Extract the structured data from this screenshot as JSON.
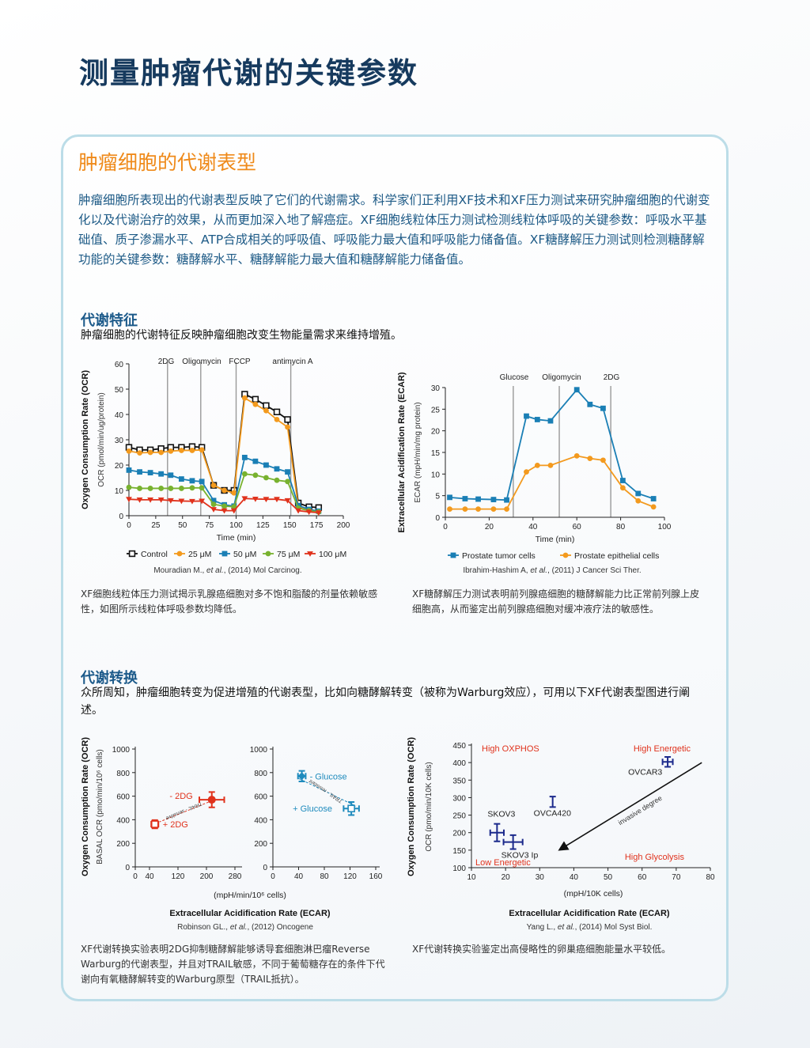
{
  "page": {
    "title": "测量肿瘤代谢的关键参数",
    "section_title": "肿瘤细胞的代谢表型",
    "intro": "肿瘤细胞所表现出的代谢表型反映了它们的代谢需求。科学家们正利用XF技术和XF压力测试来研究肿瘤细胞的代谢变化以及代谢治疗的效果，从而更加深入地了解癌症。XF细胞线粒体压力测试检测线粒体呼吸的关键参数：呼吸水平基础值、质子渗漏水平、ATP合成相关的呼吸值、呼吸能力最大值和呼吸能力储备值。XF糖酵解压力测试则检测糖酵解功能的关键参数：糖酵解水平、糖酵解能力最大值和糖酵解能力储备值。",
    "sub1_title": "代谢特征",
    "sub1_text": "肿瘤细胞的代谢特征反映肿瘤细胞改变生物能量需求来维持增殖。",
    "caption1": "XF细胞线粒体压力测试揭示乳腺癌细胞对多不饱和脂酸的剂量依赖敏感性，如图所示线粒体呼吸参数均降低。",
    "caption2": "XF糖酵解压力测试表明前列腺癌细胞的糖酵解能力比正常前列腺上皮细胞高，从而鉴定出前列腺癌细胞对缓冲液疗法的敏感性。",
    "sub2_title": "代谢转换",
    "sub2_text": "众所周知，肿瘤细胞转变为促进增殖的代谢表型，比如向糖酵解转变（被称为Warburg效应），可用以下XF代谢表型图进行阐述。",
    "caption3": "XF代谢转换实验表明2DG抑制糖酵解能够诱导套细胞淋巴瘤Reverse Warburg的代谢表型，并且对TRAIL敏感，不同于葡萄糖存在的条件下代谢向有氧糖酵解转变的Warburg原型（TRAIL抵抗）。",
    "caption4": "XF代谢转换实验鉴定出高侵略性的卵巢癌细胞能量水平较低。"
  },
  "colors": {
    "title": "#163a5e",
    "orange": "#ef8a1a",
    "panel_border": "#bcdde8",
    "control": "#111111",
    "c25": "#f39a1e",
    "c50": "#1a7fb5",
    "c75": "#78b22f",
    "c100": "#e0321c",
    "ovarian": "#1c2a8c",
    "red_label": "#e0321c",
    "teal": "#1f8bbd"
  },
  "chart_data": [
    {
      "type": "line",
      "ylabel": "Oxygen Consumption Rate (OCR)",
      "ylabel2": "OCR (pmol/min/ug/protein)",
      "xlabel": "Time (min)",
      "xlim": [
        0,
        200
      ],
      "ylim": [
        0,
        60
      ],
      "xticks": [
        0,
        25,
        50,
        75,
        100,
        125,
        150,
        175,
        200
      ],
      "yticks": [
        0,
        10,
        20,
        30,
        40,
        50,
        60
      ],
      "injections": [
        {
          "label": "2DG",
          "x": 36
        },
        {
          "label": "Oligomycin",
          "x": 67
        },
        {
          "label": "FCCP",
          "x": 100
        },
        {
          "label": "antimycin A",
          "x": 151
        }
      ],
      "x": [
        0,
        10,
        20,
        30,
        39,
        49,
        59,
        68,
        79,
        89,
        98,
        108,
        118,
        128,
        138,
        148,
        158,
        168,
        177
      ],
      "series": [
        {
          "name": "Control",
          "marker": "square-open",
          "color": "#111111",
          "values": [
            27,
            26,
            26,
            26.5,
            27,
            27,
            27.3,
            27,
            12,
            10,
            10,
            48,
            46,
            43.5,
            41,
            38,
            5,
            3.5,
            3.2
          ]
        },
        {
          "name": "25 μM",
          "marker": "circle",
          "color": "#f39a1e",
          "values": [
            25.5,
            24.8,
            25,
            25,
            25.5,
            25.8,
            25.8,
            26,
            12,
            10,
            9,
            46.5,
            44,
            41.5,
            38,
            35,
            3.5,
            2,
            1.5
          ]
        },
        {
          "name": "50 μM",
          "marker": "square",
          "color": "#1a7fb5",
          "values": [
            18,
            17.3,
            17,
            16.5,
            16,
            14.5,
            13.8,
            13.5,
            6,
            4.3,
            3.8,
            23,
            21.5,
            20,
            18.5,
            17.3,
            4,
            2.5,
            1.8
          ]
        },
        {
          "name": "75 μM",
          "marker": "circle",
          "color": "#78b22f",
          "values": [
            11.2,
            10.8,
            10.8,
            10.8,
            10.8,
            10.8,
            11,
            11,
            4.5,
            3.8,
            3.5,
            16.5,
            16,
            15,
            14,
            13.5,
            3,
            2,
            1.5
          ]
        },
        {
          "name": "100 μM",
          "marker": "triangle-down",
          "color": "#e0321c",
          "values": [
            6.5,
            6.3,
            6.3,
            6.3,
            6,
            5.8,
            5.7,
            5.8,
            2.5,
            2,
            2,
            6.8,
            6.6,
            6.5,
            6.5,
            6,
            2,
            1.5,
            1.2
          ]
        }
      ],
      "legend": "bottom",
      "citation": {
        "pre": "Mouradian M., ",
        "em": "et al.",
        "post": ", (2014) Mol Carcinog."
      }
    },
    {
      "type": "line",
      "ylabel": "Extracellular Acidification Rate (ECAR)",
      "ylabel2": "ECAR (mpH/min/mg protein)",
      "xlabel": "Time (min)",
      "xlim": [
        0,
        100
      ],
      "ylim": [
        0,
        30
      ],
      "xticks": [
        0,
        20,
        40,
        60,
        80,
        100
      ],
      "yticks": [
        0,
        5,
        10,
        15,
        20,
        25,
        30
      ],
      "injections": [
        {
          "label": "Glucose",
          "x": 31
        },
        {
          "label": "Oligomycin",
          "x": 52
        },
        {
          "label": "2DG",
          "x": 75.5
        }
      ],
      "x": [
        2,
        9,
        15,
        22,
        28,
        37,
        42,
        48,
        60,
        66,
        72,
        81,
        88,
        95
      ],
      "series": [
        {
          "name": "Prostate tumor cells",
          "marker": "square",
          "color": "#1a7fb5",
          "values": [
            4.6,
            4.3,
            4.2,
            4.1,
            4.0,
            23.4,
            22.6,
            22.3,
            29.5,
            26.1,
            25.2,
            8.5,
            5.5,
            4.3
          ]
        },
        {
          "name": "Prostate epithelial cells",
          "marker": "circle",
          "color": "#f39a1e",
          "values": [
            1.9,
            1.9,
            1.9,
            1.9,
            1.9,
            10.5,
            12,
            12,
            14.2,
            13.6,
            13.2,
            6.8,
            3.8,
            2.4
          ]
        }
      ],
      "legend": "bottom",
      "citation": {
        "pre": "Ibrahim-Hashim A, ",
        "em": "et al.",
        "post": ", (2011) J Cancer Sci Ther."
      }
    },
    {
      "type": "scatter",
      "ylabel": "Oxygen Consumption Rate (OCR)",
      "ylabel2": "BASAL OCR (pmo/min/10⁶ cells)",
      "xlabel": "(mpH/min/10⁶ cells)",
      "xlabel2": "Extracellular Acidification Rate (ECAR)",
      "panels": [
        {
          "xlim": [
            0,
            280
          ],
          "ylim": [
            0,
            1000
          ],
          "xticks": [
            0,
            40,
            120,
            200,
            280
          ],
          "yticks": [
            0,
            200,
            400,
            600,
            800,
            1000
          ],
          "color": "#e0321c",
          "arrow_label": "TRAIL - sensitive",
          "points": [
            {
              "label": "- 2DG",
              "x": 215,
              "y": 570,
              "xerr": 35,
              "yerr": 65,
              "marker": "circle"
            },
            {
              "label": "+ 2DG",
              "x": 55,
              "y": 362,
              "xerr": 10,
              "yerr": 35,
              "marker": "square-open"
            }
          ]
        },
        {
          "xlim": [
            0,
            160
          ],
          "ylim": [
            0,
            1000
          ],
          "xticks": [
            0,
            40,
            80,
            120,
            160
          ],
          "yticks": [
            0,
            200,
            400,
            600,
            800,
            1000
          ],
          "color": "#1f8bbd",
          "arrow_label": "TRAIL - resistant",
          "points": [
            {
              "label": "- Glucose",
              "x": 45,
              "y": 770,
              "xerr": 6,
              "yerr": 45,
              "marker": "diamond"
            },
            {
              "label": "+ Glucose",
              "x": 122,
              "y": 495,
              "xerr": 12,
              "yerr": 55,
              "marker": "square-open"
            }
          ]
        }
      ],
      "citation": {
        "pre": "Robinson GL., ",
        "em": "et al.",
        "post": ", (2012) Oncogene"
      }
    },
    {
      "type": "scatter",
      "ylabel": "Oxygen Consumption Rate (OCR)",
      "ylabel2": "OCR (pmo/min/10K cells)",
      "xlabel": "(mpH/10K cells)",
      "xlabel2": "Extracellular Acidification Rate (ECAR)",
      "xlim": [
        10,
        80
      ],
      "ylim": [
        100,
        450
      ],
      "xticks": [
        10,
        20,
        30,
        40,
        50,
        60,
        70,
        80
      ],
      "yticks": [
        100,
        150,
        200,
        250,
        300,
        350,
        400,
        450
      ],
      "quadrants": [
        "High OXPHOS",
        "High Energetic",
        "Low Energetic",
        "High Glycolysis"
      ],
      "arrow": {
        "label": "invasive degree",
        "from": [
          77.5,
          400
        ],
        "to": [
          36,
          152
        ]
      },
      "points": [
        {
          "label": "SKOV3",
          "x": 17.5,
          "y": 200,
          "xerr": 2,
          "yerr": 25
        },
        {
          "label": "SKOV3 Ip",
          "x": 22.2,
          "y": 173,
          "xerr": 2.8,
          "yerr": 20
        },
        {
          "label": "OVCA420",
          "x": 33.8,
          "y": 288,
          "xerr": 0,
          "yerr": 15
        },
        {
          "label": "OVCAR3",
          "x": 67.5,
          "y": 402,
          "xerr": 1.5,
          "yerr": 14
        }
      ],
      "color": "#1c2a8c",
      "citation": {
        "pre": "Yang L., ",
        "em": "et al.",
        "post": ", (2014) Mol Syst Biol."
      }
    }
  ]
}
